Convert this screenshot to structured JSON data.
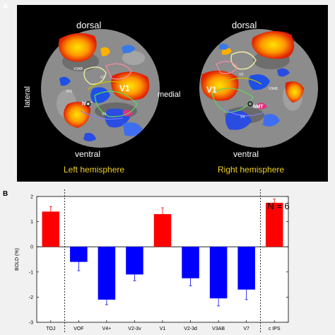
{
  "panel_a": {
    "label": "A",
    "left_map": {
      "top": "dorsal",
      "side": "lateral",
      "bottom": "ventral",
      "hemisphere": "Left hemisphere",
      "area_labels": [
        "V1",
        "V3AB",
        "IPS",
        "V2",
        "hMT",
        "V4"
      ]
    },
    "right_map": {
      "top": "dorsal",
      "bottom": "ventral",
      "hemisphere": "Right hemisphere",
      "area_labels": [
        "V1",
        "V3AB",
        "hMT",
        "V2",
        "V4"
      ]
    },
    "center": "medial",
    "colors": {
      "hemisphere_text": "#f0d020",
      "label_text": "#ffffff",
      "activation": "#ff8c00",
      "deactivation": "#1e50e6"
    }
  },
  "panel_b": {
    "label": "B",
    "annotation": "N = 6",
    "chart_data": {
      "type": "bar",
      "ylabel": "BOLD (%)",
      "ylim": [
        -3,
        2
      ],
      "yticks": [
        -3,
        -2,
        -1,
        0,
        1,
        2
      ],
      "categories": [
        "TOJ",
        "VOF",
        "V4+",
        "V2-3v",
        "V1",
        "V2-3d",
        "V3AB",
        "V7",
        "c IPS"
      ],
      "values": [
        1.4,
        -0.6,
        -2.1,
        -1.1,
        1.3,
        -1.25,
        -2.05,
        -1.7,
        1.75
      ],
      "errors": [
        0.2,
        0.35,
        0.2,
        0.25,
        0.25,
        0.3,
        0.3,
        0.4,
        0.15
      ],
      "bar_colors": [
        "#ff0000",
        "#0000ff",
        "#0000ff",
        "#0000ff",
        "#ff0000",
        "#0000ff",
        "#0000ff",
        "#0000ff",
        "#ff0000"
      ],
      "dividers_after": [
        "TOJ",
        "V7"
      ],
      "grid": false,
      "legend": "none"
    }
  }
}
